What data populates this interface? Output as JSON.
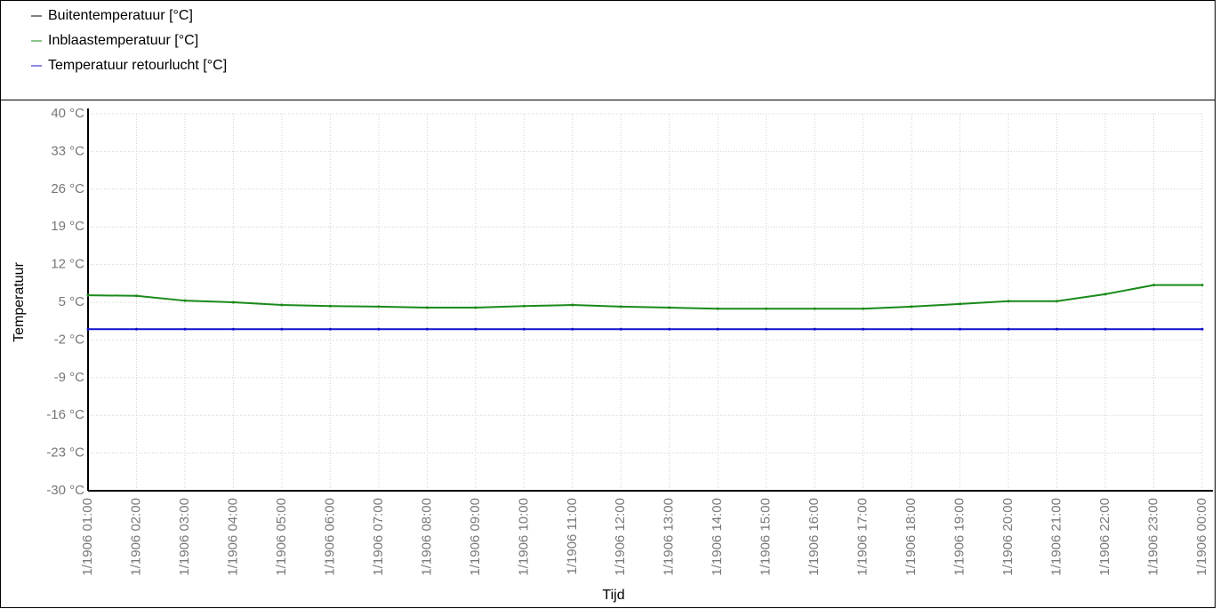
{
  "chart_data": {
    "type": "line",
    "xlabel": "Tijd",
    "ylabel": "Temperatuur",
    "categories": [
      "1/1906 01:00",
      "1/1906 02:00",
      "1/1906 03:00",
      "1/1906 04:00",
      "1/1906 05:00",
      "1/1906 06:00",
      "1/1906 07:00",
      "1/1906 08:00",
      "1/1906 09:00",
      "1/1906 10:00",
      "1/1906 11:00",
      "1/1906 12:00",
      "1/1906 13:00",
      "1/1906 14:00",
      "1/1906 15:00",
      "1/1906 16:00",
      "1/1906 17:00",
      "1/1906 18:00",
      "1/1906 19:00",
      "1/1906 20:00",
      "1/1906 21:00",
      "1/1906 22:00",
      "1/1906 23:00",
      "1/1906 00:00"
    ],
    "series": [
      {
        "name": "Buitentemperatuur [°C]",
        "color": "#000000",
        "values": [
          null,
          null,
          null,
          null,
          null,
          null,
          null,
          null,
          null,
          null,
          null,
          null,
          null,
          null,
          null,
          null,
          null,
          null,
          null,
          null,
          null,
          null,
          null,
          null
        ]
      },
      {
        "name": "Inblaastemperatuur [°C]",
        "color": "#1a8a1a",
        "values": [
          6.3,
          6.2,
          5.3,
          5.0,
          4.5,
          4.3,
          4.2,
          4.0,
          4.0,
          4.3,
          4.5,
          4.2,
          4.0,
          3.8,
          3.8,
          3.8,
          3.8,
          4.2,
          4.7,
          5.2,
          5.2,
          6.5,
          8.2,
          8.2
        ]
      },
      {
        "name": "Temperatuur retourlucht [°C]",
        "color": "#1010d0",
        "values": [
          0,
          0,
          0,
          0,
          0,
          0,
          0,
          0,
          0,
          0,
          0,
          0,
          0,
          0,
          0,
          0,
          0,
          0,
          0,
          0,
          0,
          0,
          0,
          0
        ]
      }
    ],
    "ylim": [
      -30,
      40
    ],
    "yticks": [
      {
        "value": -30,
        "label": "-30 °C"
      },
      {
        "value": -23,
        "label": "-23 °C"
      },
      {
        "value": -16,
        "label": "-16 °C"
      },
      {
        "value": -9,
        "label": "-9 °C"
      },
      {
        "value": -2,
        "label": "-2 °C"
      },
      {
        "value": 5,
        "label": "5 °C"
      },
      {
        "value": 12,
        "label": "12 °C"
      },
      {
        "value": 19,
        "label": "19 °C"
      },
      {
        "value": 26,
        "label": "26 °C"
      },
      {
        "value": 33,
        "label": "33 °C"
      },
      {
        "value": 40,
        "label": "40 °C"
      }
    ],
    "grid": true
  }
}
